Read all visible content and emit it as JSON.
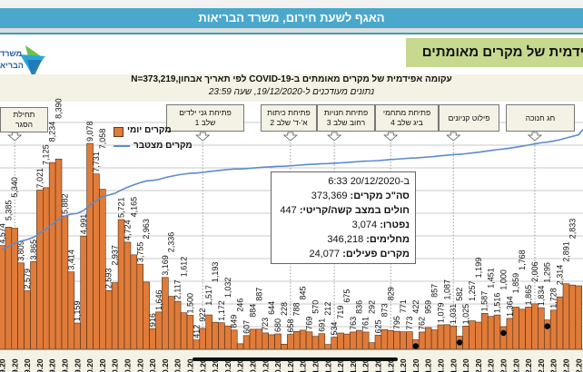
{
  "header": {
    "banner": "האגף לשעת חירום, משרד הבריאות",
    "title": "פידמית של מקרים מאומתים",
    "logo_text": "משרד הבריאות"
  },
  "chart_data": {
    "type": "bar",
    "title": "עקומה אפידמית של מקרים מאומתים ב-COVID-19 לפי תאריך אבחון,N=373,219",
    "subtitle": "נתונים מעודכנים ל-19/12/2020, שעה 23:59",
    "xlabel": "",
    "ylabel": "",
    "ylim": [
      0,
      10000
    ],
    "y2lim": [
      0,
      390000
    ],
    "grid": true,
    "legend_placement": "top-left",
    "colors": {
      "daily": "#e07b39",
      "cumulative": "#5b8bd0",
      "marker": "#000000"
    },
    "x_tick_labels": [
      "9.20",
      "9.20",
      "9.20",
      "9.20",
      "9.20",
      "9.20",
      "9.20",
      "0.20",
      "0.20",
      "0.20",
      "0.20",
      "0.20",
      "0.20",
      "0.20",
      "0.20",
      "0.20",
      "0.20",
      "0.20",
      "0.20",
      "0.20",
      "0.20",
      "0.20",
      "0.20",
      "1.20",
      "1.20",
      "1.20",
      "1.20",
      "1.20",
      "1.20",
      "1.20",
      "1.20",
      "1.20",
      "1.20",
      "1.20",
      "1.20",
      "1.20",
      "1.20",
      "1.20",
      "2.20",
      "2.20",
      "2.20",
      "2.20",
      "2.20",
      "2.20",
      "2.20",
      "2.20",
      "2.20"
    ],
    "series": [
      {
        "name": "מקרים יומי",
        "type": "bar",
        "values": [
          4574,
          5385,
          5340,
          3809,
          2579,
          3865,
          7021,
          7125,
          8234,
          8390,
          5882,
          3414,
          1159,
          4991,
          9078,
          7731,
          7058,
          2593,
          2937,
          5721,
          4724,
          4165,
          3755,
          2963,
          916,
          1646,
          3169,
          2336,
          2117,
          1612,
          1500,
          412,
          922,
          1517,
          1193,
          1172,
          1032,
          849,
          246,
          607,
          884,
          887,
          723,
          644,
          680,
          228,
          658,
          788,
          845,
          769,
          570,
          691,
          212,
          534,
          719,
          675,
          763,
          836,
          761,
          292,
          625,
          873,
          829,
          795,
          771,
          773,
          422,
          762,
          959,
          857,
          1079,
          1087,
          1031,
          582,
          1025,
          1257,
          1199,
          1587,
          1451,
          1516,
          1000,
          1364,
          1859,
          1768,
          1865,
          2006,
          1834,
          1295,
          1728,
          2314,
          2891,
          2833,
          2800
        ],
        "labels": [
          "4,574",
          "5,385",
          "5,340",
          "3,809",
          "2,579",
          "3,865",
          "7,021",
          "7,125",
          "8,234",
          "8,390",
          "5,882",
          "3,414",
          "1,159",
          "4,991",
          "9,078",
          "7,731",
          "7,058",
          "2,593",
          "2,937",
          "5,721",
          "4,724",
          "4,165",
          "3,755",
          "2,963",
          "916",
          "1,646",
          "3,169",
          "2,336",
          "2,117",
          "1,612",
          "1,500",
          "412",
          "922",
          "1,517",
          "1,193",
          "1,172",
          "1,032",
          "849",
          "246",
          "607",
          "884",
          "887",
          "723",
          "644",
          "680",
          "228",
          "658",
          "788",
          "845",
          "769",
          "570",
          "691",
          "212",
          "534",
          "719",
          "675",
          "763",
          "836",
          "761",
          "292",
          "625",
          "873",
          "829",
          "795",
          "771",
          "773",
          "422",
          "762",
          "959",
          "857",
          "1,079",
          "1,087",
          "1,031",
          "582",
          "1,025",
          "1,257",
          "1,199",
          "1,587",
          "1,451",
          "1,516",
          "1,000",
          "1,364",
          "1,859",
          "1,768",
          "1,865",
          "2,006",
          "1,834",
          "1,295",
          "1,728",
          "2,314",
          "2,891",
          "2,833",
          ""
        ]
      },
      {
        "name": "מקרים מצטבר",
        "type": "line",
        "axis": "secondary",
        "values": [
          171600,
          177000,
          182300,
          186100,
          188700,
          192600,
          199600,
          206700,
          215000,
          223300,
          229200,
          232600,
          233800,
          238800,
          247800,
          255600,
          262600,
          265200,
          268200,
          273900,
          278600,
          282800,
          286500,
          289500,
          290400,
          292100,
          295200,
          297600,
          299700,
          301300,
          302800,
          303200,
          304200,
          305700,
          306900,
          308000,
          309100,
          309900,
          310200,
          310800,
          311700,
          312500,
          313300,
          313900,
          314600,
          314800,
          315500,
          316300,
          317100,
          317900,
          318400,
          319100,
          319300,
          319900,
          320600,
          321300,
          322000,
          322900,
          323600,
          323900,
          324500,
          325400,
          326300,
          327000,
          327800,
          328600,
          329000,
          329800,
          330700,
          331600,
          332700,
          333700,
          334800,
          335300,
          336400,
          337600,
          338800,
          340400,
          341900,
          343400,
          344400,
          345800,
          347600,
          349400,
          351200,
          353300,
          355100,
          356400,
          358100,
          360400,
          363300,
          366100,
          368900
        ]
      }
    ],
    "marked_days": [
      67,
      74,
      81,
      88
    ],
    "events": [
      {
        "line1": "תחילת",
        "line2": "הסגר",
        "at_bar": 3
      },
      {
        "line1": "פתיחת גני ילדים",
        "line2": "שלב 1",
        "at_bar": 33
      },
      {
        "line1": "פתיחת כיתות",
        "line2": "א'-ד' שלב 2",
        "at_bar": 47
      },
      {
        "line1": "פתיחת חנויות",
        "line2": "רחוב שלב 3",
        "at_bar": 54
      },
      {
        "line1": "פתיחת מתחמי",
        "line2": "ביג שלב 4",
        "at_bar": 63
      },
      {
        "line1": "פילוט קניונים",
        "line2": "",
        "at_bar": 73
      },
      {
        "line1": "חג חנוכה",
        "line2": "",
        "at_bar": 86
      }
    ],
    "info_box": {
      "line1": "ב-20/12/2020 6:33",
      "rows": [
        {
          "label": "סה\"כ מקרים:",
          "value": "373,369"
        },
        {
          "label": "חולים במצב קשה/קריטי:",
          "value": "447"
        },
        {
          "label": "נפטרו:",
          "value": "3,074"
        },
        {
          "label": "מחלימים:",
          "value": "346,218"
        },
        {
          "label": "מקרים פעילים:",
          "value": "24,077"
        }
      ]
    }
  }
}
